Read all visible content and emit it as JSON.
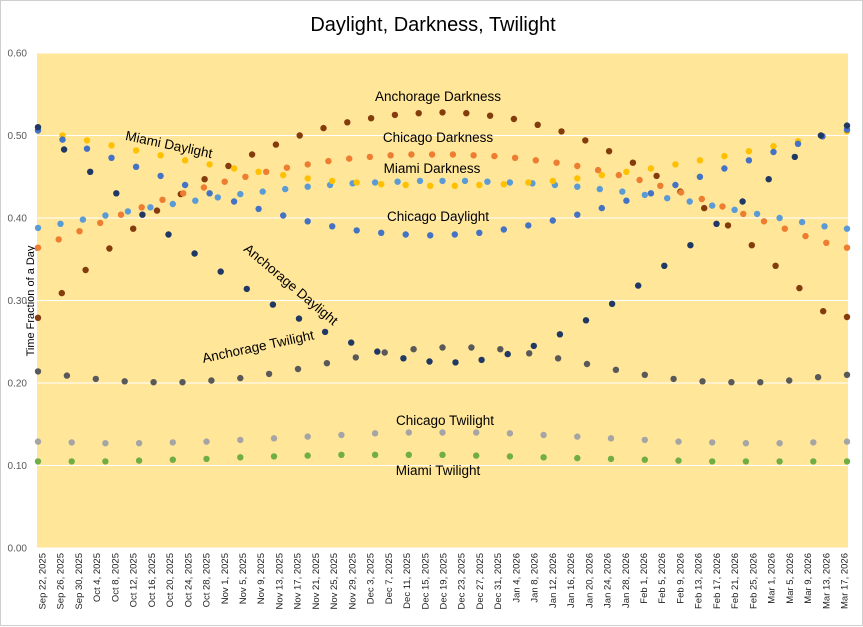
{
  "chart_data": {
    "type": "scatter",
    "title": "Daylight, Darkness, Twilight",
    "xlabel": "",
    "ylabel": "Time Fraction of a Day",
    "ylim": [
      0,
      0.6
    ],
    "yticks": [
      "0.00",
      "0.10",
      "0.20",
      "0.30",
      "0.40",
      "0.50",
      "0.60"
    ],
    "grid": true,
    "legend": "none",
    "background": "#FFE699",
    "x_dates": [
      "Sep 22, 2025",
      "Sep 26, 2025",
      "Sep 30, 2025",
      "Oct 4, 2025",
      "Oct 8, 2025",
      "Oct 12, 2025",
      "Oct 16, 2025",
      "Oct 20, 2025",
      "Oct 24, 2025",
      "Oct 28, 2025",
      "Nov 1, 2025",
      "Nov 5, 2025",
      "Nov 9, 2025",
      "Nov 13, 2025",
      "Nov 17, 2025",
      "Nov 21, 2025",
      "Nov 25, 2025",
      "Nov 29, 2025",
      "Dec 3, 2025",
      "Dec 7, 2025",
      "Dec 11, 2025",
      "Dec 15, 2025",
      "Dec 19, 2025",
      "Dec 23, 2025",
      "Dec 27, 2025",
      "Dec 31, 2025",
      "Jan 4, 2026",
      "Jan 8, 2026",
      "Jan 12, 2026",
      "Jan 16, 2026",
      "Jan 20, 2026",
      "Jan 24, 2026",
      "Jan 28, 2026",
      "Feb 1, 2026",
      "Feb 5, 2026",
      "Feb 9, 2026",
      "Feb 13, 2026",
      "Feb 17, 2026",
      "Feb 21, 2026",
      "Feb 25, 2026",
      "Mar 1, 2026",
      "Mar 5, 2026",
      "Mar 9, 2026",
      "Mar 13, 2026",
      "Mar 17, 2026"
    ],
    "series": [
      {
        "name": "Anchorage Darkness",
        "color": "#843C0C",
        "values": [
          0.279,
          0.309,
          0.337,
          0.363,
          0.387,
          0.409,
          0.429,
          0.447,
          0.463,
          0.477,
          0.489,
          0.5,
          0.509,
          0.516,
          0.521,
          0.525,
          0.527,
          0.528,
          0.527,
          0.524,
          0.52,
          0.513,
          0.505,
          0.494,
          0.481,
          0.467,
          0.451,
          0.432,
          0.412,
          0.391,
          0.367,
          0.342,
          0.315,
          0.287,
          0.28
        ]
      },
      {
        "name": "Chicago Darkness",
        "color": "#ED7D31",
        "values": [
          0.364,
          0.374,
          0.384,
          0.394,
          0.404,
          0.413,
          0.422,
          0.43,
          0.437,
          0.444,
          0.45,
          0.456,
          0.461,
          0.465,
          0.469,
          0.472,
          0.474,
          0.476,
          0.477,
          0.477,
          0.477,
          0.476,
          0.475,
          0.473,
          0.47,
          0.467,
          0.463,
          0.458,
          0.452,
          0.446,
          0.439,
          0.431,
          0.423,
          0.414,
          0.405,
          0.396,
          0.387,
          0.378,
          0.37,
          0.364
        ]
      },
      {
        "name": "Miami Darkness",
        "color": "#5B9BD5",
        "values": [
          0.388,
          0.393,
          0.398,
          0.403,
          0.408,
          0.413,
          0.417,
          0.421,
          0.425,
          0.429,
          0.432,
          0.435,
          0.438,
          0.44,
          0.442,
          0.443,
          0.444,
          0.445,
          0.445,
          0.445,
          0.444,
          0.443,
          0.442,
          0.44,
          0.438,
          0.435,
          0.432,
          0.428,
          0.424,
          0.42,
          0.415,
          0.41,
          0.405,
          0.4,
          0.395,
          0.39,
          0.387
        ]
      },
      {
        "name": "Miami Daylight",
        "color": "#FFC000",
        "values": [
          0.506,
          0.5,
          0.494,
          0.488,
          0.482,
          0.476,
          0.47,
          0.465,
          0.46,
          0.456,
          0.452,
          0.448,
          0.445,
          0.443,
          0.441,
          0.44,
          0.439,
          0.439,
          0.44,
          0.441,
          0.443,
          0.445,
          0.448,
          0.452,
          0.456,
          0.46,
          0.465,
          0.47,
          0.475,
          0.481,
          0.487,
          0.493,
          0.499,
          0.505
        ]
      },
      {
        "name": "Chicago Daylight",
        "color": "#4472C4",
        "values": [
          0.506,
          0.495,
          0.484,
          0.473,
          0.462,
          0.451,
          0.44,
          0.43,
          0.42,
          0.411,
          0.403,
          0.396,
          0.39,
          0.385,
          0.382,
          0.38,
          0.379,
          0.38,
          0.382,
          0.386,
          0.391,
          0.397,
          0.404,
          0.412,
          0.421,
          0.43,
          0.44,
          0.45,
          0.46,
          0.47,
          0.48,
          0.49,
          0.499,
          0.507
        ]
      },
      {
        "name": "Anchorage Daylight",
        "color": "#1F3864",
        "values": [
          0.51,
          0.483,
          0.456,
          0.43,
          0.404,
          0.38,
          0.357,
          0.335,
          0.314,
          0.295,
          0.278,
          0.262,
          0.249,
          0.238,
          0.23,
          0.226,
          0.225,
          0.228,
          0.235,
          0.245,
          0.259,
          0.276,
          0.296,
          0.318,
          0.342,
          0.367,
          0.393,
          0.42,
          0.447,
          0.474,
          0.5,
          0.512
        ]
      },
      {
        "name": "Anchorage Twilight",
        "color": "#595959",
        "values": [
          0.214,
          0.209,
          0.205,
          0.202,
          0.201,
          0.201,
          0.203,
          0.206,
          0.211,
          0.217,
          0.224,
          0.231,
          0.237,
          0.241,
          0.243,
          0.243,
          0.241,
          0.236,
          0.23,
          0.223,
          0.216,
          0.21,
          0.205,
          0.202,
          0.201,
          0.201,
          0.203,
          0.207,
          0.21
        ]
      },
      {
        "name": "Chicago Twilight",
        "color": "#A5A5A5",
        "values": [
          0.129,
          0.128,
          0.127,
          0.127,
          0.128,
          0.129,
          0.131,
          0.133,
          0.135,
          0.137,
          0.139,
          0.14,
          0.14,
          0.14,
          0.139,
          0.137,
          0.135,
          0.133,
          0.131,
          0.129,
          0.128,
          0.127,
          0.127,
          0.128,
          0.129
        ]
      },
      {
        "name": "Miami Twilight",
        "color": "#70AD47",
        "values": [
          0.105,
          0.105,
          0.105,
          0.106,
          0.107,
          0.108,
          0.11,
          0.111,
          0.112,
          0.113,
          0.113,
          0.113,
          0.113,
          0.112,
          0.111,
          0.11,
          0.109,
          0.108,
          0.107,
          0.106,
          0.105,
          0.105,
          0.105,
          0.105,
          0.105
        ]
      }
    ]
  }
}
